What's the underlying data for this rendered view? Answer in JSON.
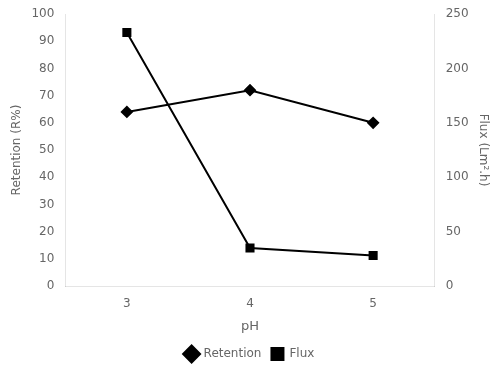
{
  "chart_data": {
    "type": "line",
    "x": [
      3,
      4,
      5
    ],
    "xlim": [
      2.5,
      5.5
    ],
    "xticks": [
      3,
      4,
      5
    ],
    "ylim": [
      0,
      100
    ],
    "yticks": [
      0,
      10,
      20,
      30,
      40,
      50,
      60,
      70,
      80,
      90,
      100
    ],
    "y2lim": [
      0,
      250
    ],
    "y2ticks": [
      0,
      50,
      100,
      150,
      200,
      250
    ],
    "xlabel": "pH",
    "ylabel": "Retention (R%)",
    "y2label": "Flux (Lm².h)",
    "series": [
      {
        "name": "Retention",
        "color": "#000000",
        "marker": "diamond",
        "values": [
          64,
          72,
          60
        ]
      },
      {
        "name": "Flux",
        "color": "#000000",
        "marker": "square",
        "axis": "y2",
        "values": [
          233,
          35,
          28
        ]
      }
    ],
    "grid": false,
    "legend": "bottom"
  }
}
